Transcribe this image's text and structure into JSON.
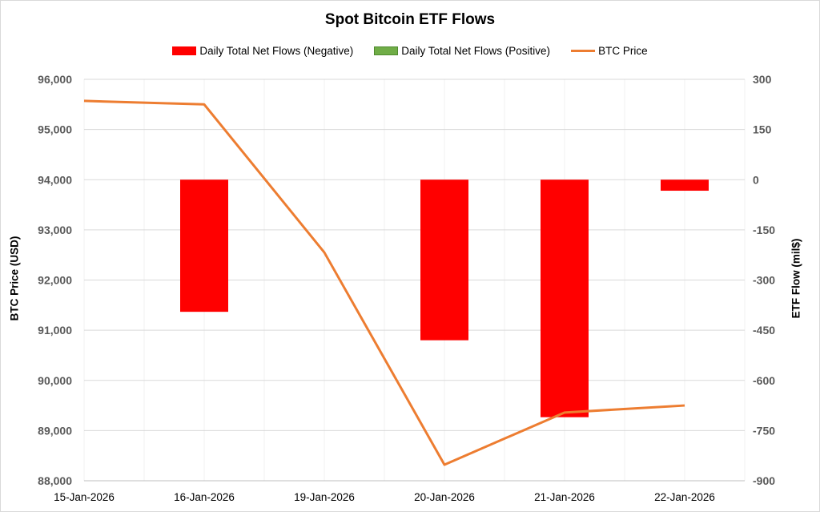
{
  "chart_data": {
    "type": "bar+line",
    "title": "Spot Bitcoin ETF Flows",
    "categories": [
      "15-Jan-2026",
      "16-Jan-2026",
      "19-Jan-2026",
      "20-Jan-2026",
      "21-Jan-2026",
      "22-Jan-2026"
    ],
    "series": [
      {
        "name": "Daily Total Net Flows (Negative)",
        "type": "bar",
        "axis": "right",
        "color": "#ff0000",
        "values": [
          null,
          -395,
          null,
          -480,
          -710,
          -33
        ]
      },
      {
        "name": "Daily Total Net Flows (Positive)",
        "type": "bar",
        "axis": "right",
        "color": "#70ad47",
        "values": [
          null,
          null,
          null,
          null,
          null,
          null
        ]
      },
      {
        "name": "BTC Price",
        "type": "line",
        "axis": "left",
        "color": "#ed7d31",
        "values": [
          95570,
          95500,
          92550,
          88320,
          89360,
          89500
        ]
      }
    ],
    "ylabel_left": "BTC Price (USD)",
    "ylabel_right": "ETF Flow (mil$)",
    "ylim_left": [
      88000,
      96000
    ],
    "ylim_right": [
      -900,
      300
    ],
    "yticks_left": [
      "88,000",
      "89,000",
      "90,000",
      "91,000",
      "92,000",
      "93,000",
      "94,000",
      "95,000",
      "96,000"
    ],
    "yticks_right": [
      "-900",
      "-750",
      "-600",
      "-450",
      "-300",
      "-150",
      "0",
      "150",
      "300"
    ],
    "grid": true,
    "legend": "top"
  }
}
